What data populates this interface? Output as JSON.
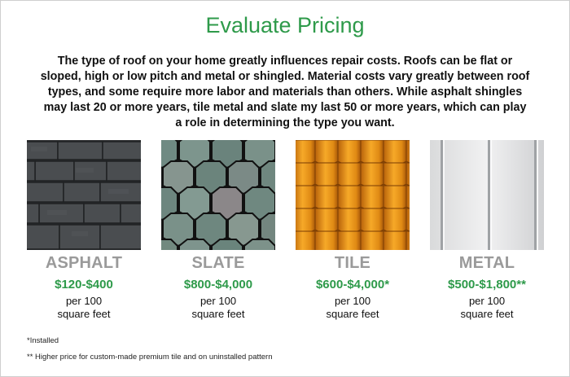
{
  "title": "Evaluate Pricing",
  "intro": "The type of roof on your home greatly influences repair costs. Roofs can be flat or sloped, high or low pitch and metal or shingled. Material costs vary greatly between roof types, and some require more labor and materials than others. While asphalt shingles may last 20 or more years, tile metal and slate my last 50 or more years, which can play a role in determining the type you want.",
  "materials": [
    {
      "name": "ASPHALT",
      "price": "$120-$400",
      "unit_line1": "per 100",
      "unit_line2": "square feet",
      "texture": "asphalt-shingle-texture"
    },
    {
      "name": "SLATE",
      "price": "$800-$4,000",
      "unit_line1": "per 100",
      "unit_line2": "square feet",
      "texture": "slate-shingle-texture"
    },
    {
      "name": "TILE",
      "price": "$600-$4,000*",
      "unit_line1": "per 100",
      "unit_line2": "square feet",
      "texture": "clay-tile-texture"
    },
    {
      "name": "METAL",
      "price": "$500-$1,800**",
      "unit_line1": "per 100",
      "unit_line2": "square feet",
      "texture": "metal-panel-texture"
    }
  ],
  "footnotes": {
    "installed": "*Installed",
    "custom": "** Higher price for custom-made premium tile and on uninstalled pattern"
  },
  "colors": {
    "accent_green": "#2e9a4a",
    "label_gray": "#9a9a9a"
  }
}
